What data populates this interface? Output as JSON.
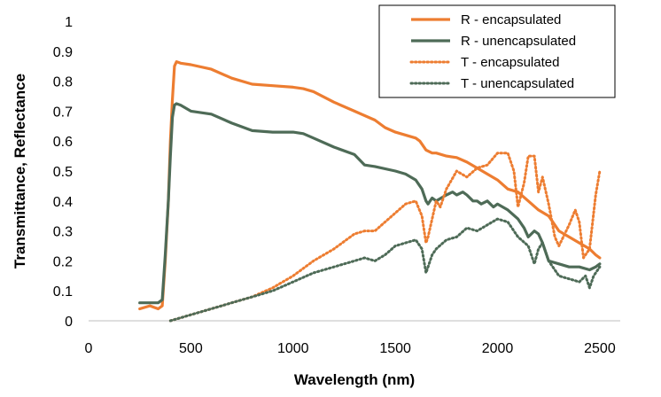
{
  "chart_data": {
    "type": "line",
    "title": "",
    "xlabel": "Wavelength (nm)",
    "ylabel": "Transmittance, Reflectance",
    "xlim": [
      0,
      2600
    ],
    "ylim": [
      0,
      1
    ],
    "xticks": [
      0,
      500,
      1000,
      1500,
      2000,
      2500
    ],
    "yticks": [
      0,
      0.1,
      0.2,
      0.3,
      0.4,
      0.5,
      0.6,
      0.7,
      0.8,
      0.9,
      1
    ],
    "grid": false,
    "legend_position": "top-right",
    "series": [
      {
        "name": "R - encapsulated",
        "color": "#ED7D31",
        "style": "solid",
        "x": [
          250,
          300,
          340,
          360,
          375,
          390,
          400,
          410,
          420,
          430,
          450,
          500,
          600,
          700,
          800,
          900,
          1000,
          1050,
          1100,
          1200,
          1300,
          1400,
          1450,
          1500,
          1550,
          1600,
          1620,
          1650,
          1680,
          1700,
          1750,
          1800,
          1850,
          1900,
          1950,
          2000,
          2050,
          2100,
          2150,
          2200,
          2250,
          2300,
          2350,
          2400,
          2450,
          2480,
          2500
        ],
        "y": [
          0.04,
          0.05,
          0.04,
          0.05,
          0.2,
          0.4,
          0.6,
          0.74,
          0.85,
          0.865,
          0.86,
          0.855,
          0.84,
          0.81,
          0.79,
          0.785,
          0.78,
          0.775,
          0.765,
          0.73,
          0.7,
          0.67,
          0.645,
          0.63,
          0.62,
          0.61,
          0.6,
          0.57,
          0.56,
          0.56,
          0.55,
          0.545,
          0.53,
          0.51,
          0.49,
          0.47,
          0.44,
          0.43,
          0.4,
          0.37,
          0.35,
          0.3,
          0.28,
          0.26,
          0.24,
          0.22,
          0.21
        ]
      },
      {
        "name": "R - unencapsulated",
        "color": "#4E6B57",
        "style": "solid",
        "x": [
          250,
          300,
          340,
          360,
          375,
          390,
          400,
          410,
          420,
          430,
          450,
          500,
          600,
          700,
          800,
          900,
          1000,
          1050,
          1100,
          1200,
          1300,
          1350,
          1400,
          1500,
          1550,
          1600,
          1630,
          1650,
          1660,
          1680,
          1700,
          1750,
          1780,
          1800,
          1830,
          1850,
          1880,
          1900,
          1920,
          1950,
          1980,
          2000,
          2050,
          2100,
          2130,
          2150,
          2180,
          2200,
          2220,
          2250,
          2300,
          2350,
          2400,
          2450,
          2480,
          2500
        ],
        "y": [
          0.06,
          0.06,
          0.06,
          0.07,
          0.22,
          0.4,
          0.55,
          0.68,
          0.72,
          0.725,
          0.72,
          0.7,
          0.69,
          0.66,
          0.635,
          0.63,
          0.63,
          0.625,
          0.61,
          0.58,
          0.555,
          0.52,
          0.515,
          0.5,
          0.49,
          0.47,
          0.44,
          0.4,
          0.39,
          0.41,
          0.4,
          0.42,
          0.43,
          0.42,
          0.43,
          0.42,
          0.4,
          0.4,
          0.39,
          0.4,
          0.38,
          0.39,
          0.37,
          0.34,
          0.31,
          0.28,
          0.3,
          0.29,
          0.26,
          0.2,
          0.19,
          0.18,
          0.18,
          0.17,
          0.18,
          0.19
        ]
      },
      {
        "name": "T - encapsulated",
        "color": "#ED7D31",
        "style": "dotted",
        "x": [
          400,
          500,
          600,
          700,
          800,
          900,
          1000,
          1100,
          1200,
          1300,
          1350,
          1400,
          1450,
          1500,
          1550,
          1600,
          1630,
          1650,
          1660,
          1680,
          1700,
          1720,
          1750,
          1800,
          1850,
          1900,
          1950,
          2000,
          2050,
          2080,
          2100,
          2130,
          2150,
          2180,
          2200,
          2220,
          2250,
          2280,
          2300,
          2350,
          2380,
          2400,
          2420,
          2450,
          2480,
          2500
        ],
        "y": [
          0.0,
          0.02,
          0.04,
          0.06,
          0.08,
          0.11,
          0.15,
          0.2,
          0.24,
          0.29,
          0.3,
          0.3,
          0.33,
          0.36,
          0.39,
          0.4,
          0.35,
          0.26,
          0.28,
          0.34,
          0.4,
          0.38,
          0.44,
          0.5,
          0.48,
          0.51,
          0.52,
          0.56,
          0.56,
          0.5,
          0.38,
          0.46,
          0.55,
          0.55,
          0.43,
          0.48,
          0.39,
          0.28,
          0.25,
          0.32,
          0.37,
          0.33,
          0.21,
          0.24,
          0.42,
          0.5
        ]
      },
      {
        "name": "T - unencapsulated",
        "color": "#4E6B57",
        "style": "dotted",
        "x": [
          400,
          500,
          600,
          700,
          800,
          900,
          1000,
          1100,
          1200,
          1300,
          1350,
          1400,
          1450,
          1500,
          1550,
          1600,
          1630,
          1650,
          1660,
          1680,
          1700,
          1750,
          1800,
          1850,
          1900,
          1950,
          2000,
          2050,
          2080,
          2100,
          2150,
          2180,
          2200,
          2220,
          2250,
          2300,
          2350,
          2400,
          2430,
          2450,
          2470,
          2500
        ],
        "y": [
          0.0,
          0.02,
          0.04,
          0.06,
          0.08,
          0.1,
          0.13,
          0.16,
          0.18,
          0.2,
          0.21,
          0.2,
          0.22,
          0.25,
          0.26,
          0.27,
          0.24,
          0.16,
          0.18,
          0.22,
          0.24,
          0.27,
          0.28,
          0.31,
          0.3,
          0.32,
          0.34,
          0.33,
          0.3,
          0.28,
          0.25,
          0.19,
          0.24,
          0.26,
          0.2,
          0.15,
          0.14,
          0.13,
          0.15,
          0.11,
          0.15,
          0.18
        ]
      }
    ]
  }
}
